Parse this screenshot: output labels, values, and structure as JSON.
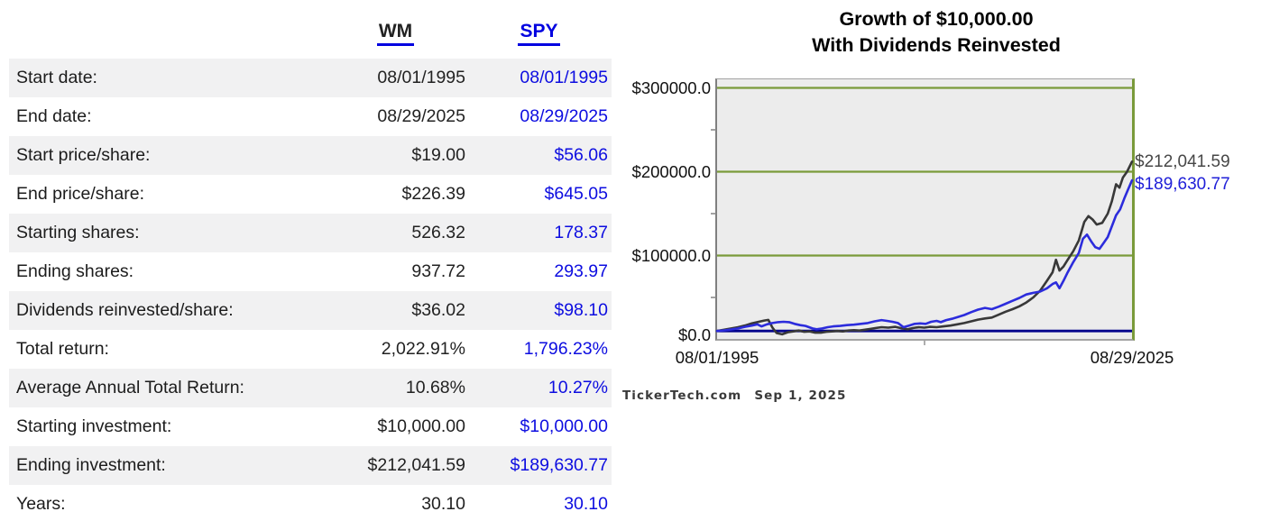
{
  "table": {
    "headers": [
      {
        "label": "WM",
        "color": "#222222"
      },
      {
        "label": "SPY",
        "color": "#0000e0"
      }
    ],
    "rows": [
      {
        "label": "Start date:",
        "wm": "08/01/1995",
        "spy": "08/01/1995"
      },
      {
        "label": "End date:",
        "wm": "08/29/2025",
        "spy": "08/29/2025"
      },
      {
        "label": "Start price/share:",
        "wm": "$19.00",
        "spy": "$56.06"
      },
      {
        "label": "End price/share:",
        "wm": "$226.39",
        "spy": "$645.05"
      },
      {
        "label": "Starting shares:",
        "wm": "526.32",
        "spy": "178.37"
      },
      {
        "label": "Ending shares:",
        "wm": "937.72",
        "spy": "293.97"
      },
      {
        "label": "Dividends reinvested/share:",
        "wm": "$36.02",
        "spy": "$98.10"
      },
      {
        "label": "Total return:",
        "wm": "2,022.91%",
        "spy": "1,796.23%"
      },
      {
        "label": "Average Annual Total Return:",
        "wm": "10.68%",
        "spy": "10.27%"
      },
      {
        "label": "Starting investment:",
        "wm": "$10,000.00",
        "spy": "$10,000.00"
      },
      {
        "label": "Ending investment:",
        "wm": "$212,041.59",
        "spy": "$189,630.77"
      },
      {
        "label": "Years:",
        "wm": "30.10",
        "spy": "30.10"
      }
    ]
  },
  "chart_data": {
    "type": "line",
    "title": "Growth of $10,000.00",
    "subtitle": "With Dividends Reinvested",
    "xlabel": "",
    "ylabel": "",
    "plot_bg": "#ececec",
    "grid_color": "#7a9a3a",
    "grid_on": true,
    "ylim": [
      0,
      310000
    ],
    "xlim_years": [
      1995.583,
      2025.66
    ],
    "y_ticks": [
      {
        "value": 300000,
        "label": "$300000.0"
      },
      {
        "value": 200000,
        "label": "$200000.0"
      },
      {
        "value": 100000,
        "label": "$100000.0"
      },
      {
        "value": 0,
        "label": "$0.0"
      }
    ],
    "y_minor_tick_values": [
      250000,
      150000,
      50000
    ],
    "x_ticks": [
      {
        "t": 1995.583,
        "label": "08/01/1995"
      },
      {
        "t": 2025.66,
        "label": "08/29/2025"
      }
    ],
    "x_minor_tick_t": 2010.62,
    "baseline": {
      "value": 10000,
      "color": "#00008b",
      "note": "starting investment baseline"
    },
    "legend_position": "none",
    "series": [
      {
        "name": "WM",
        "color": "#383838",
        "end_value": 212041.59,
        "end_label": {
          "text": "$212,041.59",
          "color": "#474747"
        },
        "points": [
          [
            1995.58,
            10000
          ],
          [
            1996.1,
            11500
          ],
          [
            1996.6,
            13000
          ],
          [
            1997.1,
            14500
          ],
          [
            1997.6,
            16500
          ],
          [
            1998.1,
            19000
          ],
          [
            1998.6,
            21000
          ],
          [
            1999.0,
            22500
          ],
          [
            1999.3,
            23200
          ],
          [
            1999.6,
            14000
          ],
          [
            1999.9,
            7500
          ],
          [
            2000.3,
            6000
          ],
          [
            2000.7,
            8500
          ],
          [
            2001.1,
            9500
          ],
          [
            2001.5,
            10500
          ],
          [
            2001.9,
            9000
          ],
          [
            2002.3,
            9500
          ],
          [
            2002.7,
            8000
          ],
          [
            2003.1,
            8000
          ],
          [
            2003.5,
            9000
          ],
          [
            2003.9,
            9500
          ],
          [
            2004.3,
            10000
          ],
          [
            2004.7,
            9500
          ],
          [
            2005.1,
            10500
          ],
          [
            2005.5,
            11000
          ],
          [
            2005.9,
            10500
          ],
          [
            2006.3,
            11500
          ],
          [
            2006.7,
            12500
          ],
          [
            2007.1,
            13500
          ],
          [
            2007.5,
            14500
          ],
          [
            2008.0,
            14000
          ],
          [
            2008.5,
            15000
          ],
          [
            2009.0,
            13000
          ],
          [
            2009.4,
            12000
          ],
          [
            2009.8,
            13500
          ],
          [
            2010.2,
            14500
          ],
          [
            2010.6,
            14000
          ],
          [
            2011.0,
            15000
          ],
          [
            2011.5,
            14500
          ],
          [
            2012.0,
            15500
          ],
          [
            2012.5,
            16500
          ],
          [
            2013.0,
            18000
          ],
          [
            2013.5,
            19500
          ],
          [
            2014.0,
            21500
          ],
          [
            2014.5,
            23500
          ],
          [
            2015.0,
            25000
          ],
          [
            2015.5,
            26000
          ],
          [
            2016.0,
            29500
          ],
          [
            2016.5,
            33000
          ],
          [
            2017.0,
            36000
          ],
          [
            2017.5,
            39500
          ],
          [
            2018.0,
            44000
          ],
          [
            2018.5,
            50000
          ],
          [
            2019.0,
            58000
          ],
          [
            2019.5,
            70000
          ],
          [
            2019.9,
            80000
          ],
          [
            2020.15,
            95000
          ],
          [
            2020.4,
            82000
          ],
          [
            2020.7,
            87000
          ],
          [
            2021.0,
            95000
          ],
          [
            2021.4,
            105000
          ],
          [
            2021.8,
            118000
          ],
          [
            2022.2,
            140000
          ],
          [
            2022.5,
            147000
          ],
          [
            2022.8,
            143000
          ],
          [
            2023.1,
            137000
          ],
          [
            2023.5,
            139000
          ],
          [
            2023.9,
            150000
          ],
          [
            2024.2,
            165000
          ],
          [
            2024.5,
            185000
          ],
          [
            2024.75,
            181000
          ],
          [
            2025.0,
            193000
          ],
          [
            2025.3,
            200000
          ],
          [
            2025.66,
            212041.59
          ]
        ]
      },
      {
        "name": "SPY",
        "color": "#2c2cdc",
        "end_value": 189630.77,
        "end_label": {
          "text": "$189,630.77",
          "color": "#2020d8"
        },
        "points": [
          [
            1995.58,
            10000
          ],
          [
            1996.1,
            10800
          ],
          [
            1996.6,
            11800
          ],
          [
            1997.1,
            13000
          ],
          [
            1997.6,
            15000
          ],
          [
            1998.1,
            16500
          ],
          [
            1998.5,
            18000
          ],
          [
            1998.8,
            15500
          ],
          [
            1999.2,
            18000
          ],
          [
            1999.6,
            19500
          ],
          [
            2000.0,
            20500
          ],
          [
            2000.4,
            21000
          ],
          [
            2000.8,
            20500
          ],
          [
            2001.2,
            18500
          ],
          [
            2001.6,
            17000
          ],
          [
            2002.0,
            16000
          ],
          [
            2002.5,
            13000
          ],
          [
            2002.8,
            12000
          ],
          [
            2003.2,
            13000
          ],
          [
            2003.6,
            14500
          ],
          [
            2004.0,
            15500
          ],
          [
            2004.5,
            16000
          ],
          [
            2005.0,
            17000
          ],
          [
            2005.5,
            17500
          ],
          [
            2006.0,
            18500
          ],
          [
            2006.5,
            19500
          ],
          [
            2007.0,
            21500
          ],
          [
            2007.5,
            23000
          ],
          [
            2007.9,
            22000
          ],
          [
            2008.3,
            21000
          ],
          [
            2008.7,
            19500
          ],
          [
            2009.1,
            14500
          ],
          [
            2009.5,
            16500
          ],
          [
            2009.9,
            18500
          ],
          [
            2010.3,
            19000
          ],
          [
            2010.7,
            18500
          ],
          [
            2011.1,
            21000
          ],
          [
            2011.5,
            22000
          ],
          [
            2011.8,
            20500
          ],
          [
            2012.2,
            23000
          ],
          [
            2012.6,
            24500
          ],
          [
            2013.0,
            26500
          ],
          [
            2013.5,
            29000
          ],
          [
            2014.0,
            32500
          ],
          [
            2014.5,
            35500
          ],
          [
            2015.0,
            37500
          ],
          [
            2015.5,
            36000
          ],
          [
            2016.0,
            39000
          ],
          [
            2016.5,
            42500
          ],
          [
            2017.0,
            46000
          ],
          [
            2017.5,
            49500
          ],
          [
            2018.0,
            53500
          ],
          [
            2018.5,
            55500
          ],
          [
            2019.0,
            57000
          ],
          [
            2019.5,
            61000
          ],
          [
            2019.9,
            66000
          ],
          [
            2020.15,
            68000
          ],
          [
            2020.4,
            61000
          ],
          [
            2020.7,
            70000
          ],
          [
            2021.0,
            80000
          ],
          [
            2021.4,
            92000
          ],
          [
            2021.8,
            103000
          ],
          [
            2022.1,
            120000
          ],
          [
            2022.4,
            125000
          ],
          [
            2022.7,
            117000
          ],
          [
            2023.0,
            110000
          ],
          [
            2023.3,
            108000
          ],
          [
            2023.6,
            115000
          ],
          [
            2023.9,
            122000
          ],
          [
            2024.2,
            135000
          ],
          [
            2024.5,
            148000
          ],
          [
            2024.8,
            155000
          ],
          [
            2025.1,
            168000
          ],
          [
            2025.35,
            178000
          ],
          [
            2025.66,
            189630.77
          ]
        ]
      }
    ]
  },
  "watermark": {
    "source": "TickerTech.com",
    "date": "Sep 1, 2025"
  }
}
